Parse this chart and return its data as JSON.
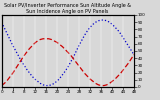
{
  "title": "Solar PV/Inverter Performance Sun Altitude Angle & Sun Incidence Angle on PV Panels",
  "blue_label": "Sun Altitude Angle",
  "red_label": "Sun Incidence Angle",
  "x_values": [
    0,
    1,
    2,
    3,
    4,
    5,
    6,
    7,
    8,
    9,
    10,
    11,
    12,
    13,
    14,
    15,
    16,
    17,
    18,
    19,
    20,
    21,
    22,
    23,
    24,
    25,
    26,
    27,
    28,
    29,
    30,
    31,
    32,
    33,
    34,
    35,
    36,
    37,
    38,
    39,
    40,
    41,
    42,
    43,
    44,
    45,
    46,
    47,
    48
  ],
  "blue_values": [
    90,
    82,
    74,
    66,
    58,
    51,
    44,
    37,
    31,
    25,
    20,
    15,
    11,
    8,
    5,
    3,
    2,
    2,
    3,
    5,
    8,
    12,
    17,
    22,
    28,
    35,
    42,
    50,
    58,
    65,
    72,
    78,
    83,
    87,
    90,
    92,
    93,
    93,
    92,
    90,
    87,
    83,
    79,
    74,
    68,
    62,
    56,
    50,
    44
  ],
  "red_values": [
    2,
    5,
    9,
    14,
    19,
    25,
    31,
    37,
    43,
    48,
    53,
    57,
    61,
    64,
    66,
    67,
    67,
    67,
    66,
    64,
    62,
    59,
    56,
    52,
    48,
    44,
    39,
    34,
    29,
    24,
    19,
    15,
    11,
    8,
    5,
    3,
    2,
    2,
    3,
    5,
    8,
    11,
    15,
    19,
    24,
    29,
    34,
    40,
    46
  ],
  "blue_color": "#0000cc",
  "red_color": "#cc0000",
  "bg_color": "#d8d8d8",
  "ylim": [
    0,
    100
  ],
  "xlim": [
    0,
    48
  ],
  "yticks_right": [
    0,
    10,
    20,
    30,
    40,
    50,
    60,
    70,
    80,
    90,
    100
  ],
  "xticks": [
    0,
    4,
    8,
    12,
    16,
    20,
    24,
    28,
    32,
    36,
    40,
    44,
    48
  ],
  "grid_color": "#ffffff",
  "title_fontsize": 3.5,
  "tick_fontsize": 3.0,
  "line_width": 0.9
}
